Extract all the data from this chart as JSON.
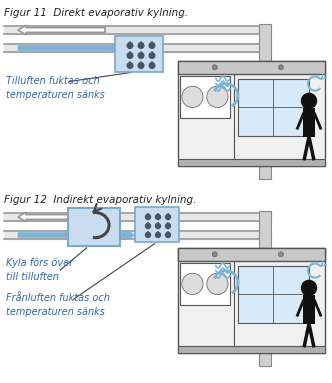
{
  "title1": "Figur 11  Direkt evaporativ kylning.",
  "title2": "Figur 12  Indirekt evaporativ kylning.",
  "label1": "Tilluften fuktas och\ntemperaturen sänks",
  "label2a": "Kyla förs över\ntill tilluften",
  "label2b": "Frånluften fuktas och\ntemperaturen sänks",
  "bg_color": "#ffffff",
  "duct_gray": "#999999",
  "duct_fill": "#dddddd",
  "box_fill": "#c8ddf0",
  "box_stroke": "#7aaac8",
  "room_wall": "#f0f0f0",
  "room_ceil": "#c8c8c8",
  "room_floor": "#b0b0b0",
  "arrow_blue": "#7ab4d8",
  "arrow_gray_fill": "#ffffff",
  "arrow_gray_stroke": "#888888",
  "text_blue": "#3366aa",
  "person_color": "#111111",
  "pipe_fill": "#d0d0d0",
  "pipe_stroke": "#888888",
  "hx_arrow": "#555555",
  "drop_color": "#445566",
  "line_color": "#555555"
}
